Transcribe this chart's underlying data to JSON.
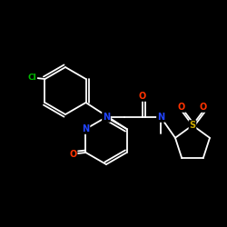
{
  "background": "#000000",
  "bond_color": "#ffffff",
  "atom_colors": {
    "Cl": "#00bb00",
    "N": "#2244ff",
    "O": "#ff3300",
    "S": "#ccaa00",
    "C": "#ffffff"
  },
  "lw": 1.3,
  "fontsize": 7.0
}
